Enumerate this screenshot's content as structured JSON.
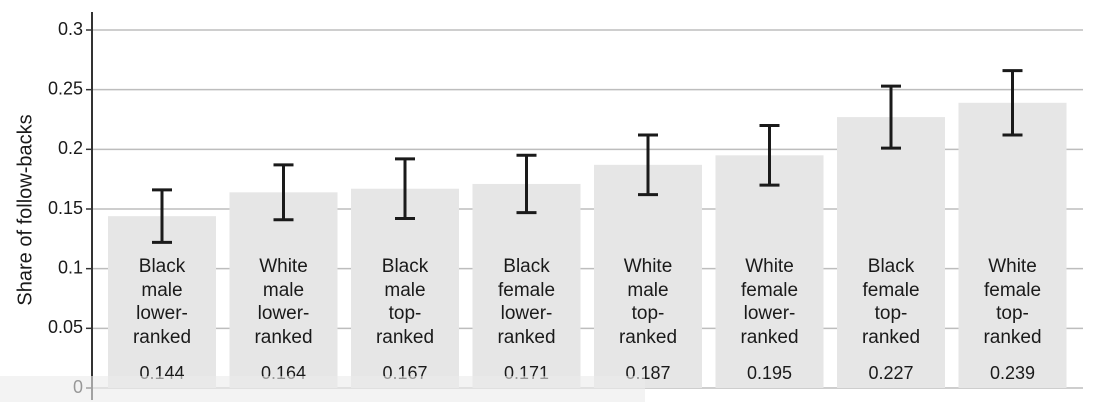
{
  "chart_data": {
    "type": "bar",
    "y_label": "Share of follow-backs",
    "categories": [
      "Black\nmale\nlower-\nranked",
      "White\nmale\nlower-\nranked",
      "Black\nmale\ntop-\nranked",
      "Black\nfemale\nlower-\nranked",
      "White\nmale\ntop-\nranked",
      "White\nfemale\nlower-\nranked",
      "Black\nfemale\ntop-\nranked",
      "White\nfemale\ntop-\nranked"
    ],
    "values": [
      0.144,
      0.164,
      0.167,
      0.171,
      0.187,
      0.195,
      0.227,
      0.239
    ],
    "errors": [
      0.022,
      0.023,
      0.025,
      0.024,
      0.025,
      0.025,
      0.026,
      0.027
    ],
    "color": "#e6e6e6",
    "error_color": "#1a1a1a",
    "ylim": [
      0,
      0.3
    ],
    "yticks": [
      0,
      0.05,
      0.1,
      0.15,
      0.2,
      0.25,
      0.3
    ],
    "grid": true
  }
}
